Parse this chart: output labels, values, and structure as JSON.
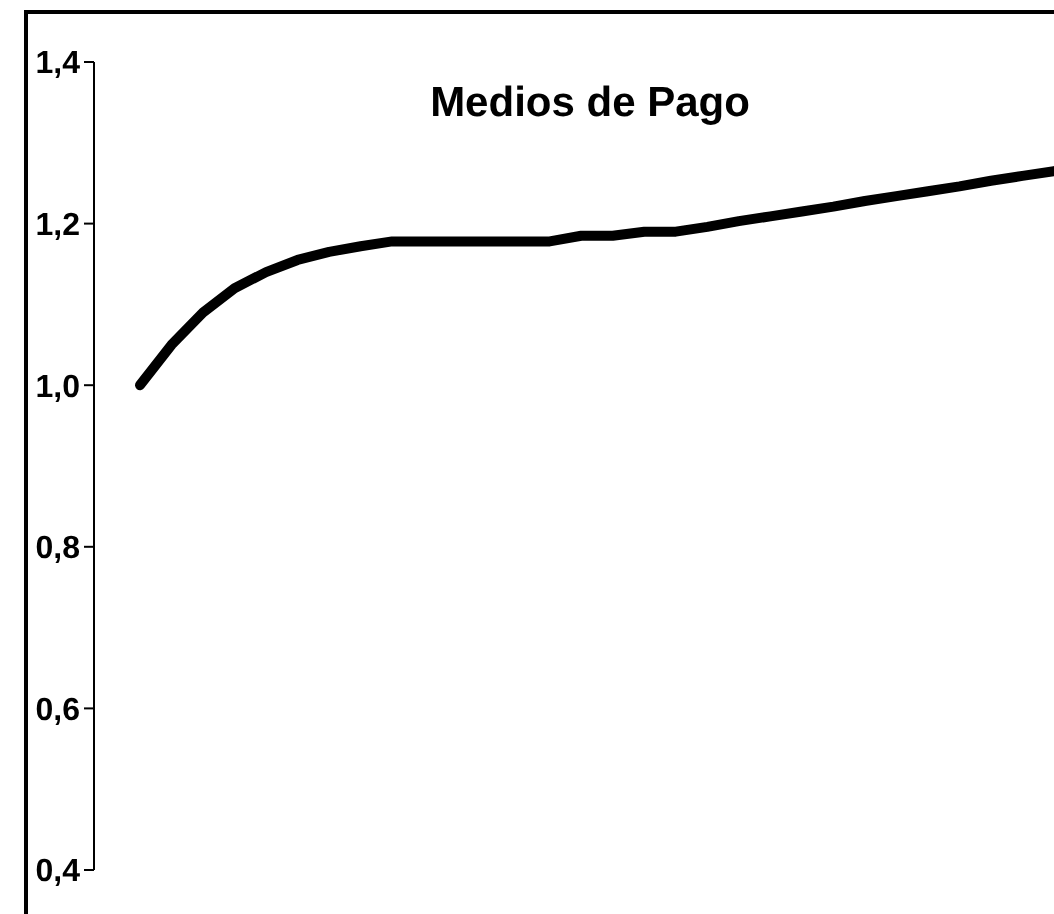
{
  "chart_data": {
    "type": "line",
    "title": "Medios de Pago",
    "categories": [
      null,
      null,
      null,
      null,
      null,
      null,
      null,
      null,
      null,
      null,
      null,
      null,
      null,
      null,
      null,
      null,
      null,
      null,
      null,
      null,
      null,
      null,
      null,
      null,
      null,
      null,
      null,
      null,
      null,
      null
    ],
    "series": [
      {
        "color": "#000000",
        "values": [
          1.0,
          1.05,
          1.09,
          1.12,
          1.14,
          1.155,
          1.165,
          1.172,
          1.178,
          1.178,
          1.178,
          1.178,
          1.178,
          1.178,
          1.185,
          1.185,
          1.19,
          1.19,
          1.196,
          1.203,
          1.209,
          1.215,
          1.221,
          1.228,
          1.234,
          1.24,
          1.246,
          1.253,
          1.259,
          1.265
        ]
      }
    ],
    "ylim": [
      0.4,
      1.4
    ],
    "yticks": [
      {
        "value": 0.4,
        "label": "0,4"
      },
      {
        "value": 0.6,
        "label": "0,6"
      },
      {
        "value": 0.8,
        "label": "0,8"
      },
      {
        "value": 1.0,
        "label": "1,0"
      },
      {
        "value": 1.2,
        "label": "1,2"
      },
      {
        "value": 1.4,
        "label": "1,4"
      }
    ],
    "tick_labels": "y",
    "grid": false,
    "legend": false,
    "marker": "none",
    "line_style": "solid"
  }
}
